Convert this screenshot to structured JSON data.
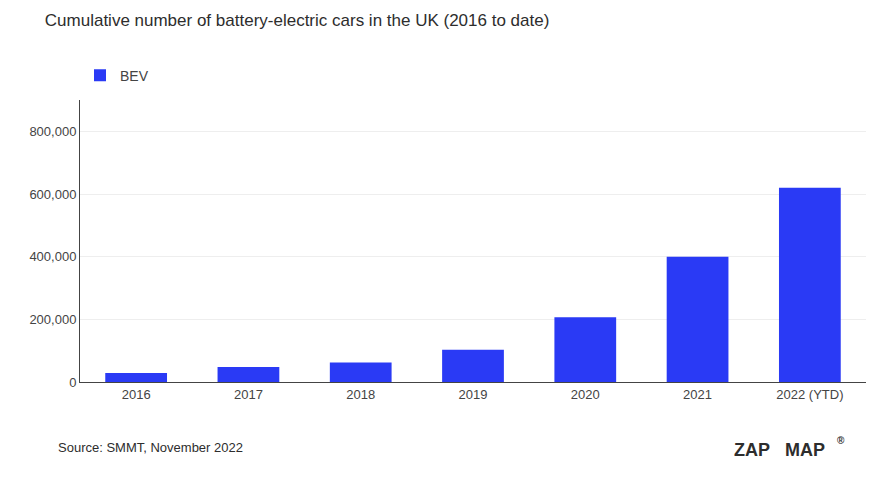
{
  "chart_data": {
    "type": "bar",
    "title": "Cumulative number of battery-electric cars in the UK (2016 to date)",
    "categories": [
      "2016",
      "2017",
      "2018",
      "2019",
      "2020",
      "2021",
      "2022 (YTD)"
    ],
    "series": [
      {
        "name": "BEV",
        "color": "#2a3af5",
        "values": [
          29000,
          48000,
          62000,
          103000,
          207000,
          400000,
          620000
        ]
      }
    ],
    "ylim": [
      0,
      900000
    ],
    "yticks": [
      0,
      {
        "value": 200000,
        "label": "200,000"
      },
      {
        "value": 400000,
        "label": "400,000"
      },
      {
        "value": 600000,
        "label": "600,000"
      },
      {
        "value": 800000,
        "label": "800,000"
      }
    ],
    "grid": true,
    "legend": "top left",
    "annotations": [
      "Source: SMMT, November 2022",
      "ZAP",
      "MAP",
      "®"
    ]
  }
}
